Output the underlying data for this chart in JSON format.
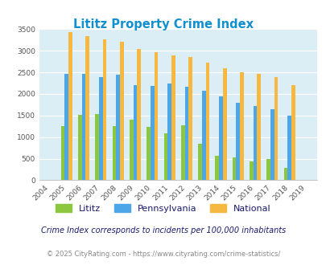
{
  "title": "Lititz Property Crime Index",
  "years": [
    2004,
    2005,
    2006,
    2007,
    2008,
    2009,
    2010,
    2011,
    2012,
    2013,
    2014,
    2015,
    2016,
    2017,
    2018,
    2019
  ],
  "lititz": [
    0,
    1250,
    1510,
    1530,
    1250,
    1400,
    1240,
    1090,
    1270,
    840,
    570,
    530,
    430,
    490,
    290,
    0
  ],
  "pennsylvania": [
    0,
    2460,
    2470,
    2380,
    2440,
    2210,
    2180,
    2240,
    2160,
    2070,
    1940,
    1800,
    1720,
    1640,
    1490,
    0
  ],
  "national": [
    0,
    3430,
    3330,
    3260,
    3200,
    3040,
    2960,
    2900,
    2860,
    2730,
    2600,
    2500,
    2470,
    2380,
    2210,
    0
  ],
  "lititz_color": "#8dc63f",
  "pa_color": "#4da6e8",
  "national_color": "#f5b942",
  "bg_color": "#dceef5",
  "ylabel_max": 3500,
  "yticks": [
    0,
    500,
    1000,
    1500,
    2000,
    2500,
    3000,
    3500
  ],
  "subtitle": "Crime Index corresponds to incidents per 100,000 inhabitants",
  "footer": "© 2025 CityRating.com - https://www.cityrating.com/crime-statistics/",
  "title_color": "#1090d0",
  "subtitle_color": "#1a1a6e",
  "footer_color": "#888888"
}
